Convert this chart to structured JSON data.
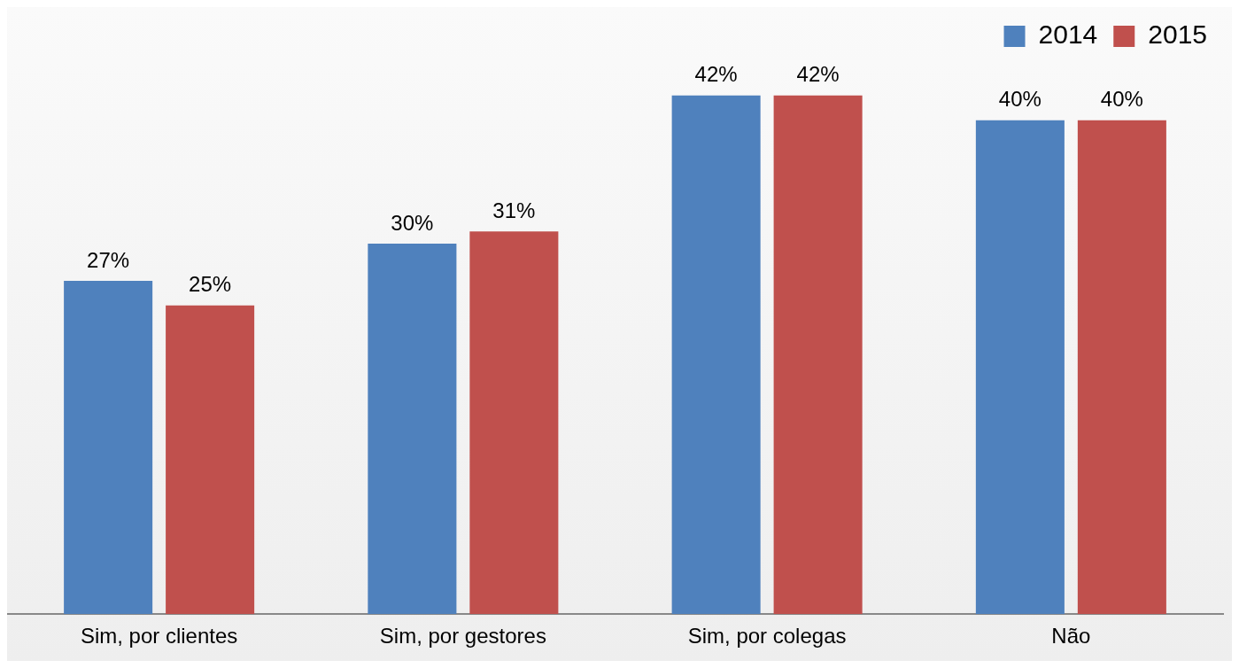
{
  "chart_data": {
    "type": "bar",
    "categories": [
      "Sim, por clientes",
      "Sim, por gestores",
      "Sim, por colegas",
      "Não"
    ],
    "series": [
      {
        "name": "2014",
        "color": "#4f81bd",
        "values": [
          27,
          30,
          42,
          40
        ],
        "value_labels": [
          "27%",
          "30%",
          "42%",
          "40%"
        ]
      },
      {
        "name": "2015",
        "color": "#c0504d",
        "values": [
          25,
          31,
          42,
          40
        ],
        "value_labels": [
          "25%",
          "31%",
          "42%",
          "40%"
        ]
      }
    ],
    "tick_labels": "x",
    "grid": false,
    "legend": "top right"
  }
}
